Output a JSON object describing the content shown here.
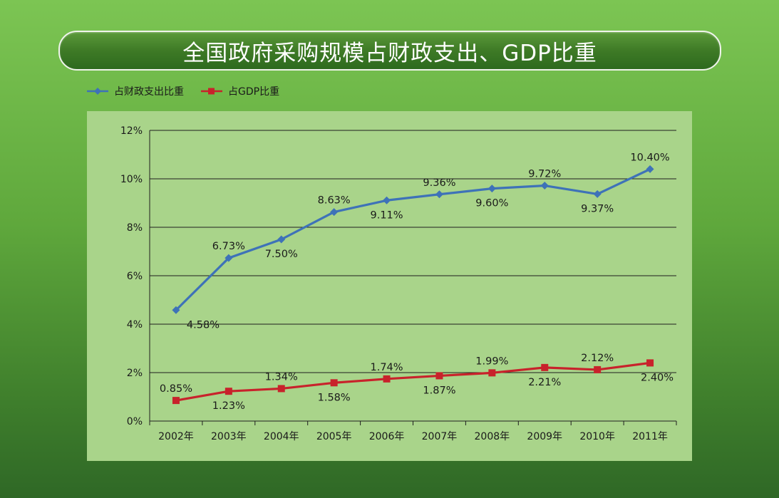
{
  "title": "全国政府采购规模占财政支出、GDP比重",
  "colors": {
    "series1": "#3e72b8",
    "series2": "#c8222b",
    "panel": "#a9d48a"
  },
  "chart_data": {
    "type": "line",
    "categories": [
      "2002年",
      "2003年",
      "2004年",
      "2005年",
      "2006年",
      "2007年",
      "2008年",
      "2009年",
      "2010年",
      "2011年"
    ],
    "series": [
      {
        "name": "占财政支出比重",
        "values": [
          4.58,
          6.73,
          7.5,
          8.63,
          9.11,
          9.36,
          9.6,
          9.72,
          9.37,
          10.4
        ],
        "labels": [
          "4.58%",
          "6.73%",
          "7.50%",
          "8.63%",
          "9.11%",
          "9.36%",
          "9.60%",
          "9.72%",
          "9.37%",
          "10.40%"
        ],
        "marker": "diamond"
      },
      {
        "name": "占GDP比重",
        "values": [
          0.85,
          1.23,
          1.34,
          1.58,
          1.74,
          1.87,
          1.99,
          2.21,
          2.12,
          2.4
        ],
        "labels": [
          "0.85%",
          "1.23%",
          "1.34%",
          "1.58%",
          "1.74%",
          "1.87%",
          "1.99%",
          "2.21%",
          "2.12%",
          "2.40%"
        ],
        "marker": "square"
      }
    ],
    "yticks": [
      "0%",
      "2%",
      "4%",
      "6%",
      "8%",
      "10%",
      "12%"
    ],
    "ylim": [
      0,
      12
    ],
    "grid": true,
    "legend_position": "top-left"
  }
}
